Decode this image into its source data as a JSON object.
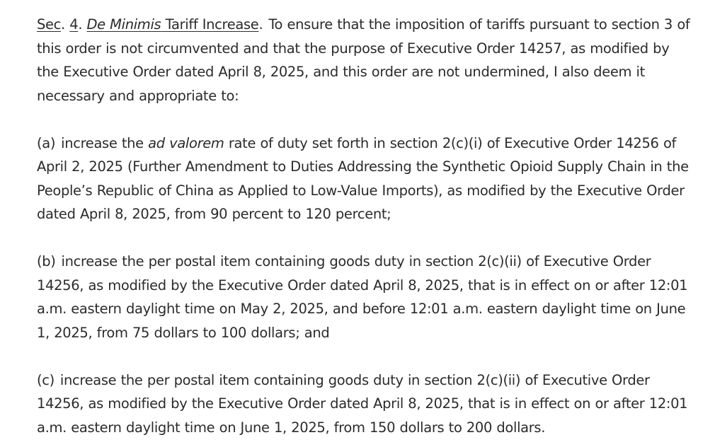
{
  "section": {
    "sec_label": "Sec",
    "sec_number": "4",
    "heading_italic": "De Minimis",
    "heading_rest": " Tariff Increase",
    "intro_text": "To ensure that the imposition of tariffs pursuant to section 3 of this order is not circumvented and that the purpose of Executive Order 14257, as modified by the Executive Order dated April 8, 2025, and this order are not undermined, I also deem it necessary and appropriate to:"
  },
  "items": [
    {
      "label": "(a)",
      "before_italic": "increase the ",
      "italic": "ad valorem",
      "after_italic": " rate of duty set forth in section 2(c)(i) of Executive Order 14256 of April 2, 2025 (Further Amendment to Duties Addressing the Synthetic Opioid Supply Chain in the People’s Republic of China as Applied to Low-Value Imports), as modified by the Executive Order dated April 8, 2025, from 90 percent to 120 percent;"
    },
    {
      "label": "(b)",
      "text": "increase the per postal item containing goods duty in section 2(c)(ii) of Executive Order 14256, as modified by the Executive Order dated April 8, 2025, that is in effect on or after 12:01 a.m. eastern daylight time on May 2, 2025, and before 12:01 a.m. eastern daylight time on June 1, 2025, from 75 dollars to 100 dollars; and"
    },
    {
      "label": "(c)",
      "text": "increase the per postal item containing goods duty in section 2(c)(ii) of Executive Order 14256, as modified by the Executive Order dated April 8, 2025, that is in effect on or after 12:01 a.m. eastern daylight time on June 1, 2025, from 150 dollars to 200 dollars."
    }
  ]
}
